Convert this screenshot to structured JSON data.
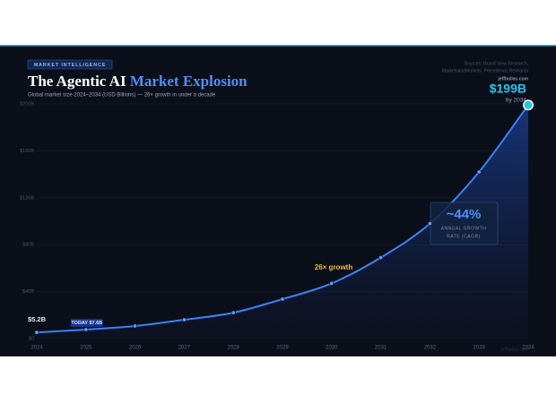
{
  "chart_data": {
    "type": "line",
    "badge": "MARKET INTELLIGENCE",
    "title": "The Agentic AI",
    "title_highlight": "Market Explosion",
    "subtitle": "Global market size 2024–2034 (USD Billions) — 26× growth in under a decade",
    "sources": [
      "Sources: Grand View Research,",
      "MarketsandMarkets, Precedence Research"
    ],
    "site": "jeffbullas.com",
    "categories": [
      "2024",
      "2025",
      "2026",
      "2027",
      "2028",
      "2029",
      "2030",
      "2031",
      "2032",
      "2033",
      "2034"
    ],
    "values": [
      5.2,
      7.6,
      10.7,
      16,
      22,
      33.6,
      47,
      69,
      98,
      142,
      199
    ],
    "value_labels": [
      "$5.2B",
      "TODAY $7.6B",
      null,
      null,
      null,
      null,
      null,
      null,
      null,
      null,
      "$199B"
    ],
    "color": "#3b82f6",
    "ylim": [
      0,
      200
    ],
    "yticks": [
      {
        "value": 0,
        "label": "$0"
      },
      {
        "value": 40,
        "label": "$40B"
      },
      {
        "value": 80,
        "label": "$80B"
      },
      {
        "value": 120,
        "label": "$120B"
      },
      {
        "value": 160,
        "label": "$160B"
      },
      {
        "value": 200,
        "label": "$200B"
      }
    ],
    "grid": true,
    "end_note": "by 2034",
    "growth_note": "26× growth",
    "cagr": "~44%",
    "cagr_label": [
      "ANNUAL GROWTH",
      "RATE (CAGR)"
    ],
    "watermark": "jeffbullas.com"
  }
}
